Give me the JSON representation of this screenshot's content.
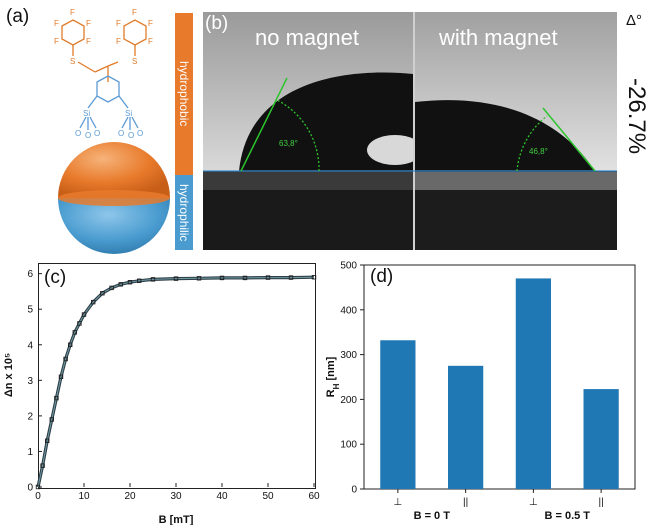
{
  "panel_a": {
    "label": "(a)",
    "molecule_F": "F",
    "molecule_S": "S",
    "molecule_Si": "Si",
    "molecule_O": "O",
    "hydrophobic_label": "hydrophobic",
    "hydrophilic_label": "hydrophilic",
    "colors": {
      "hydrophobic": "#e87a2b",
      "hydrophilic": "#4a9cd0",
      "molecule_orange": "#e07b2a",
      "molecule_blue": "#5b9bd5"
    }
  },
  "panel_b": {
    "label": "(b)",
    "left_title": "no magnet",
    "right_title": "with magnet",
    "left_angle": "63,8°",
    "right_angle": "46,8°",
    "delta_symbol": "Δ°",
    "delta_value": "-26.7%"
  },
  "chart_data": [
    {
      "panel": "(c)",
      "type": "scatter",
      "xlabel": "B [mT]",
      "ylabel": "Δn x 10⁵",
      "xlim": [
        0,
        60
      ],
      "ylim": [
        0,
        6.3
      ],
      "xticks": [
        "0",
        "10",
        "20",
        "30",
        "40",
        "50",
        "60"
      ],
      "yticks": [
        "0",
        "1",
        "2",
        "3",
        "4",
        "5",
        "6"
      ],
      "x": [
        0,
        1,
        2,
        3,
        4,
        5,
        6,
        7,
        8,
        9,
        10,
        12,
        14,
        16,
        18,
        20,
        22,
        25,
        30,
        35,
        40,
        45,
        50,
        55,
        60
      ],
      "y": [
        0,
        0.6,
        1.3,
        1.9,
        2.5,
        3.1,
        3.6,
        4.0,
        4.35,
        4.6,
        4.85,
        5.2,
        5.45,
        5.6,
        5.7,
        5.76,
        5.8,
        5.84,
        5.86,
        5.87,
        5.88,
        5.88,
        5.89,
        5.89,
        5.9
      ]
    },
    {
      "panel": "(d)",
      "type": "bar",
      "ylabel": "R",
      "ylabel_sub": "H",
      "ylabel_unit": " [nm]",
      "ylim": [
        0,
        500
      ],
      "yticks": [
        "0",
        "100",
        "200",
        "300",
        "400",
        "500"
      ],
      "categories": [
        "⊥",
        "||",
        "⊥",
        "||"
      ],
      "values": [
        332,
        275,
        470,
        223
      ],
      "group_labels": [
        "B = 0 T",
        "B = 0.5 T"
      ],
      "bar_color": "#1f77b4"
    }
  ]
}
